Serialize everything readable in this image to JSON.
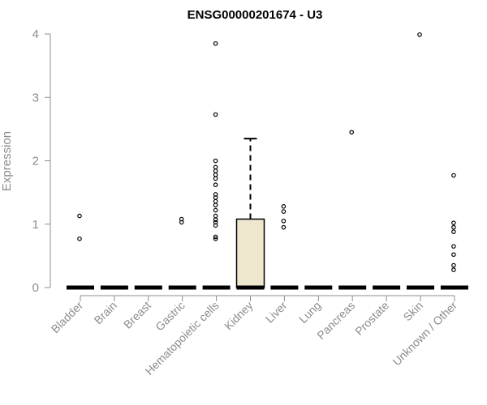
{
  "chart_data": {
    "type": "boxplot",
    "title": "ENSG00000201674 - U3",
    "xlabel": "",
    "ylabel": "Expression",
    "ylim": [
      0,
      4
    ],
    "yticks": [
      0,
      1,
      2,
      3,
      4
    ],
    "grid": false,
    "box_color": "#ede7cd",
    "categories": [
      "Bladder",
      "Brain",
      "Breast",
      "Gastric",
      "Hematopoietic cells",
      "Kidney",
      "Liver",
      "Lung",
      "Pancreas",
      "Prostate",
      "Skin",
      "Unknown / Other"
    ],
    "boxes": [
      {
        "q1": 0,
        "median": 0,
        "q3": 0,
        "whisker_low": 0,
        "whisker_high": 0,
        "outliers": [
          0.77,
          1.13
        ]
      },
      {
        "q1": 0,
        "median": 0,
        "q3": 0,
        "whisker_low": 0,
        "whisker_high": 0,
        "outliers": []
      },
      {
        "q1": 0,
        "median": 0,
        "q3": 0,
        "whisker_low": 0,
        "whisker_high": 0,
        "outliers": []
      },
      {
        "q1": 0,
        "median": 0,
        "q3": 0,
        "whisker_low": 0,
        "whisker_high": 0,
        "outliers": [
          1.03,
          1.08
        ]
      },
      {
        "q1": 0,
        "median": 0,
        "q3": 0,
        "whisker_low": 0,
        "whisker_high": 0,
        "outliers": [
          0.77,
          0.8,
          0.98,
          1.03,
          1.07,
          1.13,
          1.22,
          1.3,
          1.36,
          1.42,
          1.47,
          1.62,
          1.72,
          1.78,
          1.84,
          1.9,
          2.0,
          2.73,
          3.85
        ]
      },
      {
        "q1": 0,
        "median": 0,
        "q3": 1.08,
        "whisker_low": 0,
        "whisker_high": 2.35,
        "outliers": []
      },
      {
        "q1": 0,
        "median": 0,
        "q3": 0,
        "whisker_low": 0,
        "whisker_high": 0,
        "outliers": [
          0.95,
          1.05,
          1.2,
          1.28
        ]
      },
      {
        "q1": 0,
        "median": 0,
        "q3": 0,
        "whisker_low": 0,
        "whisker_high": 0,
        "outliers": []
      },
      {
        "q1": 0,
        "median": 0,
        "q3": 0,
        "whisker_low": 0,
        "whisker_high": 0,
        "outliers": [
          2.45
        ]
      },
      {
        "q1": 0,
        "median": 0,
        "q3": 0,
        "whisker_low": 0,
        "whisker_high": 0,
        "outliers": []
      },
      {
        "q1": 0,
        "median": 0,
        "q3": 0,
        "whisker_low": 0,
        "whisker_high": 0,
        "outliers": [
          3.99
        ]
      },
      {
        "q1": 0,
        "median": 0,
        "q3": 0,
        "whisker_low": 0,
        "whisker_high": 0,
        "outliers": [
          0.28,
          0.35,
          0.52,
          0.65,
          0.88,
          0.95,
          1.02,
          1.77
        ]
      }
    ]
  }
}
